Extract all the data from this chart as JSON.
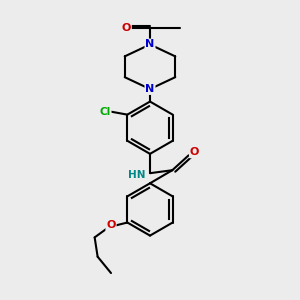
{
  "bg_color": "#ececec",
  "colors": {
    "N": "#0000cc",
    "O": "#cc0000",
    "Cl": "#00aa00",
    "C": "#000000",
    "NH_color": "#008888"
  },
  "figsize": [
    3.0,
    3.0
  ],
  "dpi": 100
}
